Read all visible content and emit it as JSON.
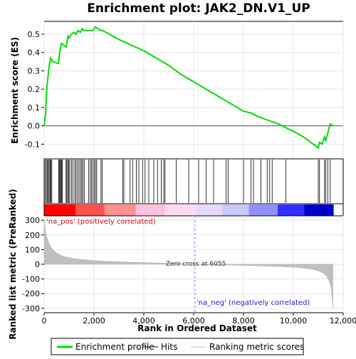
{
  "chart_data": {
    "type": "line",
    "title": "Enrichment plot: JAK2_DN.V1_UP",
    "xlabel": "Rank in Ordered Dataset",
    "ylabel_es": "Enrichment score (ES)",
    "ylabel_metric": "Ranked list metric (PreRanked)",
    "x_range": [
      0,
      12000
    ],
    "x_ticks": [
      0,
      2000,
      4000,
      6000,
      8000,
      10000,
      12000
    ],
    "x_tick_labels": [
      "0",
      "2,000",
      "4,000",
      "6,000",
      "8,000",
      "10,000",
      "12,000"
    ],
    "es_range": [
      -0.18,
      0.57
    ],
    "es_ticks": [
      -0.1,
      0.0,
      0.1,
      0.2,
      0.3,
      0.4,
      0.5
    ],
    "es_tick_labels": [
      "-0.1",
      "0.0",
      "0.1",
      "0.2",
      "0.3",
      "0.4",
      "0.5"
    ],
    "metric_range": [
      -330,
      330
    ],
    "metric_ticks": [
      -300,
      -200,
      -100,
      0,
      100,
      200,
      300
    ],
    "metric_tick_labels": [
      "-300",
      "-200",
      "-100",
      "0",
      "100",
      "200",
      "300"
    ],
    "total_genes": 11600,
    "series": [
      {
        "name": "Enrichment profile",
        "color": "#00dd00",
        "x": [
          0,
          60,
          100,
          140,
          180,
          220,
          260,
          300,
          350,
          580,
          620,
          660,
          700,
          880,
          920,
          960,
          1000,
          1100,
          1200,
          1280,
          1360,
          1450,
          1530,
          1600,
          1700,
          1800,
          1880,
          1950,
          2000,
          2060,
          2150,
          2280,
          2350,
          3150,
          3200,
          3500,
          4000,
          4500,
          5000,
          5500,
          6000,
          6500,
          7000,
          7500,
          8000,
          8300,
          8600,
          9000,
          9400,
          9700,
          10000,
          10400,
          10800,
          11000,
          11050,
          11150,
          11250,
          11300,
          11400,
          11480,
          11580
        ],
        "y": [
          0.0,
          0.07,
          0.19,
          0.25,
          0.3,
          0.34,
          0.37,
          0.36,
          0.35,
          0.34,
          0.4,
          0.43,
          0.45,
          0.43,
          0.46,
          0.49,
          0.48,
          0.5,
          0.51,
          0.5,
          0.52,
          0.51,
          0.53,
          0.52,
          0.52,
          0.52,
          0.52,
          0.52,
          0.53,
          0.54,
          0.53,
          0.52,
          0.52,
          0.46,
          0.46,
          0.44,
          0.41,
          0.37,
          0.33,
          0.28,
          0.24,
          0.2,
          0.16,
          0.12,
          0.08,
          0.07,
          0.05,
          0.03,
          0.01,
          -0.01,
          -0.03,
          -0.06,
          -0.1,
          -0.12,
          -0.09,
          -0.1,
          -0.06,
          -0.08,
          -0.03,
          0.01,
          0.0
        ]
      }
    ],
    "hits": [
      40,
      90,
      130,
      170,
      200,
      240,
      270,
      310,
      580,
      610,
      640,
      680,
      700,
      730,
      880,
      910,
      950,
      990,
      1030,
      1100,
      1160,
      1230,
      1280,
      1340,
      1400,
      1460,
      1510,
      1560,
      1610,
      1780,
      1850,
      1900,
      1960,
      2010,
      2060,
      2110,
      2280,
      2330,
      3150,
      3200,
      3450,
      3550,
      3700,
      3800,
      3950,
      4050,
      4200,
      4400,
      4550,
      4700,
      4800,
      4850,
      5300,
      5800,
      6200,
      6500,
      6800,
      7300,
      7380,
      8000,
      8300,
      8400,
      8700,
      8950,
      9050,
      9150,
      9700,
      11000,
      11050,
      11250,
      11300,
      11380,
      11480
    ],
    "metric_profile": {
      "x": [
        0,
        50,
        100,
        200,
        300,
        500,
        800,
        1200,
        1800,
        2500,
        3500,
        4500,
        5500,
        6055,
        6500,
        7500,
        8500,
        9500,
        10200,
        10700,
        11000,
        11200,
        11350,
        11450,
        11520,
        11560,
        11590
      ],
      "y": [
        310,
        230,
        190,
        140,
        110,
        75,
        52,
        38,
        28,
        20,
        14,
        9,
        4,
        0,
        -3,
        -6,
        -10,
        -16,
        -22,
        -32,
        -45,
        -60,
        -85,
        -120,
        -170,
        -230,
        -300
      ]
    },
    "heatmap_colors": [
      "#ff0000",
      "#ff5050",
      "#ff9090",
      "#ffc0e0",
      "#ffd8f4",
      "#e8d8ff",
      "#c8c8ff",
      "#9090ff",
      "#3030ff",
      "#0000cc"
    ],
    "positive_label": "'na_pos' (positively correlated)",
    "negative_label": "'na_neg' (negatively correlated)",
    "zero_cross_label": "Zero cross at 6055",
    "zero_cross_rank": 6055,
    "legend": {
      "items": [
        {
          "label": "Enrichment profile",
          "color": "#00dd00",
          "style": "thick-line"
        },
        {
          "label": "Hits",
          "color": "#000000",
          "style": "line"
        },
        {
          "label": "Ranking metric scores",
          "color": "#c0c0c0",
          "style": "line"
        }
      ]
    }
  }
}
